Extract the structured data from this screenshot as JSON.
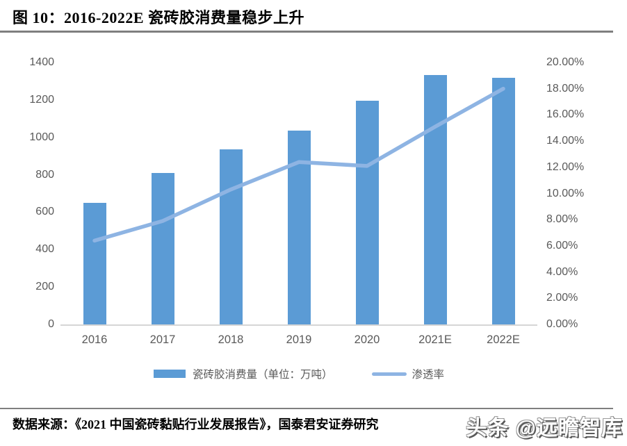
{
  "header": {
    "title": "图 10：2016-2022E 瓷砖胶消费量稳步上升"
  },
  "chart_data": {
    "type": "bar",
    "subtype": "combo-bar-line",
    "title": "图 10：2016-2022E 瓷砖胶消费量稳步上升",
    "categories": [
      "2016",
      "2017",
      "2018",
      "2019",
      "2020",
      "2021E",
      "2022E"
    ],
    "series": [
      {
        "name": "瓷砖胶消费量（单位：万吨）",
        "type": "bar",
        "axis": "left",
        "color": "#5B9BD5",
        "values": [
          650,
          810,
          935,
          1035,
          1195,
          1335,
          1320
        ]
      },
      {
        "name": "渗透率",
        "type": "line",
        "axis": "right",
        "color": "#8EB4E3",
        "values": [
          6.4,
          7.9,
          10.3,
          12.4,
          12.1,
          15.1,
          18.0
        ]
      }
    ],
    "left_axis": {
      "min": 0,
      "max": 1400,
      "step": 200,
      "ticks_top_to_bottom": [
        "1400",
        "1200",
        "1000",
        "800",
        "600",
        "400",
        "200",
        "0"
      ]
    },
    "right_axis": {
      "min": 0,
      "max": 20,
      "step": 2,
      "ticks_top_to_bottom": [
        "20.00%",
        "18.00%",
        "16.00%",
        "14.00%",
        "12.00%",
        "10.00%",
        "8.00%",
        "6.00%",
        "4.00%",
        "2.00%",
        "0.00%"
      ]
    },
    "grid": false,
    "legend_position": "bottom"
  },
  "footer": {
    "source": "数据来源：《2021 中国瓷砖黏贴行业发展报告》，国泰君安证券研究",
    "watermark": "头条 @远瞻智库"
  }
}
